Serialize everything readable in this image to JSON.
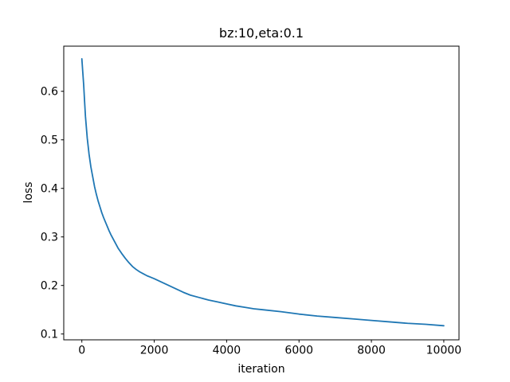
{
  "figure": {
    "background": "#ffffff",
    "text_color": "#000000",
    "spine_color": "#000000"
  },
  "chart_data": {
    "type": "line",
    "title": "bz:10,eta:0.1",
    "xlabel": "iteration",
    "ylabel": "loss",
    "grid": false,
    "legend": null,
    "xlim": [
      -500,
      10420
    ],
    "ylim": [
      0.088,
      0.693
    ],
    "xticks": [
      0,
      2000,
      4000,
      6000,
      8000,
      10000
    ],
    "xtick_labels": [
      "0",
      "2000",
      "4000",
      "6000",
      "8000",
      "10000"
    ],
    "yticks": [
      0.1,
      0.2,
      0.3,
      0.4,
      0.5,
      0.6
    ],
    "ytick_labels": [
      "0.1",
      "0.2",
      "0.3",
      "0.4",
      "0.5",
      "0.6"
    ],
    "series": [
      {
        "name": "loss",
        "color": "#1f77b4",
        "linewidth": 1.8,
        "x": [
          0,
          25,
          50,
          75,
          100,
          150,
          200,
          250,
          300,
          350,
          400,
          450,
          500,
          550,
          600,
          650,
          700,
          750,
          800,
          850,
          900,
          950,
          1000,
          1100,
          1200,
          1300,
          1400,
          1500,
          1600,
          1700,
          1800,
          1900,
          2000,
          2200,
          2400,
          2600,
          2800,
          3000,
          3250,
          3500,
          3750,
          4000,
          4250,
          4500,
          4750,
          5000,
          5500,
          6000,
          6500,
          7000,
          7500,
          8000,
          8500,
          9000,
          9500,
          10000
        ],
        "y": [
          0.667,
          0.64,
          0.614,
          0.58,
          0.548,
          0.503,
          0.47,
          0.444,
          0.424,
          0.404,
          0.388,
          0.374,
          0.362,
          0.35,
          0.34,
          0.331,
          0.322,
          0.313,
          0.305,
          0.298,
          0.291,
          0.284,
          0.277,
          0.266,
          0.256,
          0.247,
          0.239,
          0.233,
          0.228,
          0.224,
          0.22,
          0.217,
          0.214,
          0.207,
          0.2,
          0.193,
          0.186,
          0.18,
          0.175,
          0.17,
          0.166,
          0.162,
          0.158,
          0.155,
          0.152,
          0.15,
          0.146,
          0.141,
          0.137,
          0.134,
          0.131,
          0.128,
          0.125,
          0.122,
          0.12,
          0.117
        ]
      }
    ]
  }
}
